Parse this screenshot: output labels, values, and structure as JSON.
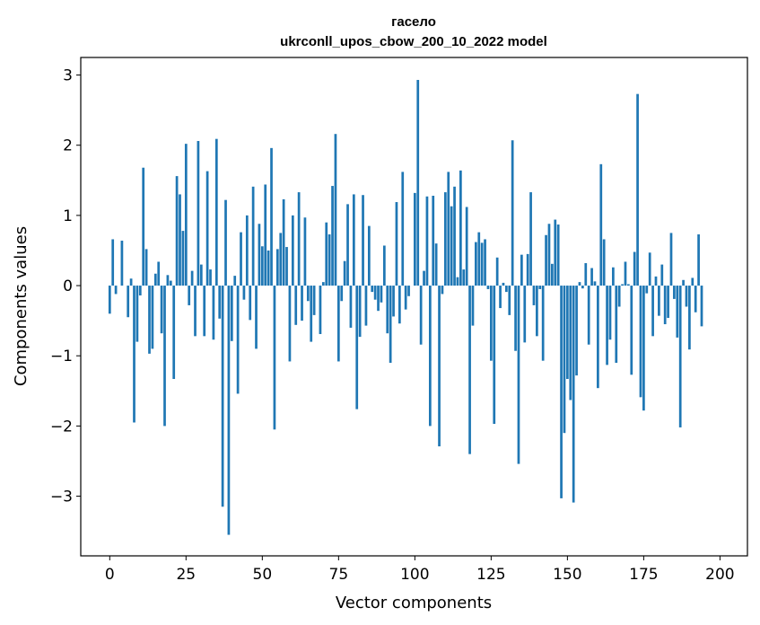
{
  "chart_data": {
    "type": "bar",
    "title": "гасело",
    "subtitle": "ukrconll_upos_cbow_200_10_2022 model",
    "xlabel": "Vector components",
    "ylabel": "Components values",
    "xlim": [
      -9.5,
      209
    ],
    "ylim": [
      -3.85,
      3.25
    ],
    "x_ticks": [
      0,
      25,
      50,
      75,
      100,
      125,
      150,
      175,
      200
    ],
    "x_tick_labels": [
      "0",
      "25",
      "50",
      "75",
      "100",
      "125",
      "150",
      "175",
      "200"
    ],
    "y_ticks": [
      -3,
      -2,
      -1,
      0,
      1,
      2,
      3
    ],
    "y_tick_labels": [
      "−3",
      "−2",
      "−1",
      "0",
      "1",
      "2",
      "3"
    ],
    "grid": false,
    "legend": "none",
    "bar_color": "#1f77b4",
    "values": [
      -0.4,
      0.66,
      -0.12,
      0.0,
      0.64,
      0.0,
      -0.45,
      0.1,
      -1.95,
      -0.8,
      -0.14,
      1.68,
      0.52,
      -0.97,
      -0.9,
      0.17,
      0.34,
      -0.68,
      -2.0,
      0.15,
      0.07,
      -1.33,
      1.56,
      1.3,
      0.78,
      2.02,
      -0.28,
      0.21,
      -0.72,
      2.06,
      0.3,
      -0.72,
      1.63,
      0.23,
      -0.77,
      2.09,
      -0.47,
      -3.15,
      1.22,
      -3.55,
      -0.79,
      0.14,
      -1.54,
      0.76,
      -0.2,
      1.0,
      -0.49,
      1.41,
      -0.9,
      0.88,
      0.56,
      1.44,
      0.5,
      1.96,
      -2.05,
      0.52,
      0.75,
      1.23,
      0.55,
      -1.08,
      1.0,
      -0.56,
      1.33,
      -0.5,
      0.97,
      -0.22,
      -0.8,
      -0.42,
      0.0,
      -0.69,
      0.05,
      0.9,
      0.73,
      1.42,
      2.16,
      -1.08,
      -0.22,
      0.35,
      1.16,
      -0.6,
      1.3,
      -1.76,
      -0.73,
      1.29,
      -0.57,
      0.85,
      -0.09,
      -0.2,
      -0.36,
      -0.24,
      0.57,
      -0.68,
      -1.1,
      -0.44,
      1.19,
      -0.54,
      1.62,
      -0.34,
      -0.15,
      0.0,
      1.32,
      2.93,
      -0.84,
      0.21,
      1.27,
      -2.0,
      1.28,
      0.6,
      -2.29,
      -0.12,
      1.33,
      1.62,
      1.13,
      1.41,
      0.12,
      1.64,
      0.23,
      1.12,
      -2.4,
      -0.57,
      0.62,
      0.76,
      0.61,
      0.66,
      -0.05,
      -1.07,
      -1.97,
      0.4,
      -0.32,
      0.04,
      -0.09,
      -0.42,
      2.07,
      -0.93,
      -2.54,
      0.44,
      -0.81,
      0.45,
      1.33,
      -0.28,
      -0.72,
      -0.05,
      -1.07,
      0.72,
      0.88,
      0.31,
      0.94,
      0.87,
      -3.03,
      -2.1,
      -1.33,
      -1.63,
      -3.09,
      -1.28,
      0.05,
      -0.04,
      0.32,
      -0.84,
      0.25,
      0.06,
      -1.46,
      1.73,
      0.66,
      -1.13,
      -0.77,
      0.26,
      -1.1,
      -0.3,
      0.02,
      0.34,
      0.02,
      -1.27,
      0.48,
      2.73,
      -1.59,
      -1.78,
      -0.11,
      0.47,
      -0.72,
      0.13,
      -0.43,
      0.3,
      -0.55,
      -0.46,
      0.75,
      -0.19,
      -0.74,
      -2.02,
      0.08,
      -0.3,
      -0.91,
      0.11,
      -0.38,
      0.73,
      -0.58
    ]
  }
}
